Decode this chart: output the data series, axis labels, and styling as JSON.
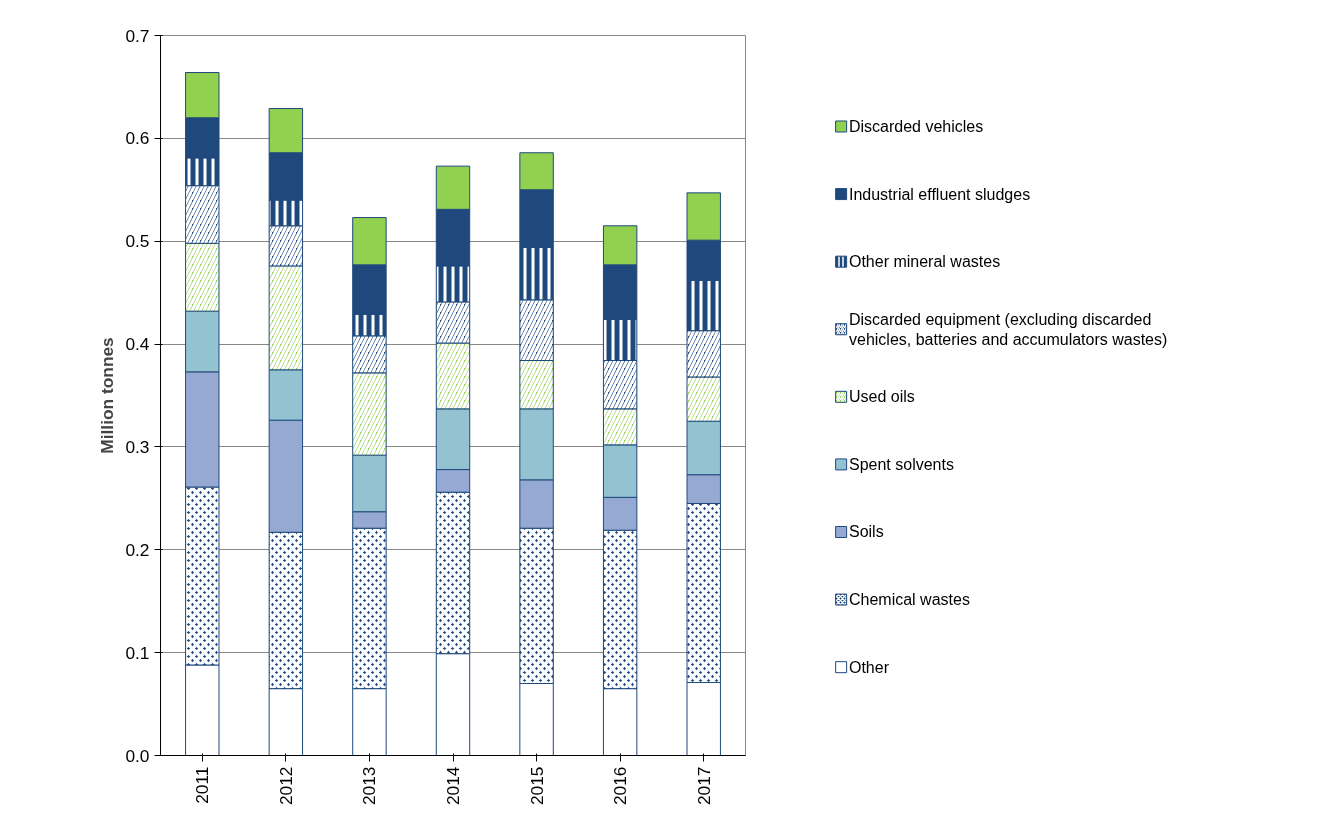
{
  "chart_data": {
    "type": "bar",
    "stacked": true,
    "ylabel": "Million tonnes",
    "categories": [
      "2011",
      "2012",
      "2013",
      "2014",
      "2015",
      "2016",
      "2017"
    ],
    "series": [
      {
        "name": "Other",
        "color": "#ffffff",
        "values": [
          0.088,
          0.065,
          0.065,
          0.099,
          0.07,
          0.065,
          0.071
        ]
      },
      {
        "name": "Chemical wastes",
        "color": "#1f497d",
        "values": [
          0.173,
          0.152,
          0.156,
          0.157,
          0.151,
          0.154,
          0.174
        ]
      },
      {
        "name": "Soils",
        "color": "#95a9d3",
        "values": [
          0.112,
          0.109,
          0.016,
          0.022,
          0.047,
          0.032,
          0.028
        ]
      },
      {
        "name": "Spent solvents",
        "color": "#93c3d0",
        "values": [
          0.059,
          0.049,
          0.055,
          0.059,
          0.069,
          0.051,
          0.052
        ]
      },
      {
        "name": "Used oils",
        "color": "#92d050",
        "values": [
          0.066,
          0.101,
          0.08,
          0.064,
          0.047,
          0.035,
          0.043
        ]
      },
      {
        "name": "Discarded equipment (excluding discarded vehicles, batteries and accumulators wastes)",
        "color": "#1f497d",
        "values": [
          0.056,
          0.039,
          0.036,
          0.04,
          0.059,
          0.047,
          0.045
        ]
      },
      {
        "name": "Other mineral wastes",
        "color": "#1f497d",
        "values": [
          0.027,
          0.025,
          0.021,
          0.035,
          0.051,
          0.04,
          0.049
        ]
      },
      {
        "name": "Industrial effluent sludges",
        "color": "#1f497d",
        "values": [
          0.039,
          0.046,
          0.048,
          0.055,
          0.056,
          0.053,
          0.039
        ]
      },
      {
        "name": "Discarded vehicles",
        "color": "#92d050",
        "values": [
          0.044,
          0.043,
          0.046,
          0.042,
          0.036,
          0.038,
          0.046
        ]
      }
    ],
    "ylim": [
      0,
      0.7
    ],
    "yticks": [
      {
        "value": 0,
        "label": "0.0"
      },
      {
        "value": 0.1,
        "label": "0.1"
      },
      {
        "value": 0.2,
        "label": "0.2"
      },
      {
        "value": 0.3,
        "label": "0.3"
      },
      {
        "value": 0.4,
        "label": "0.4"
      },
      {
        "value": 0.5,
        "label": "0.5"
      },
      {
        "value": 0.6,
        "label": "0.6"
      },
      {
        "value": 0.7,
        "label": "0.7"
      }
    ],
    "grid": "y",
    "legend": "right"
  }
}
